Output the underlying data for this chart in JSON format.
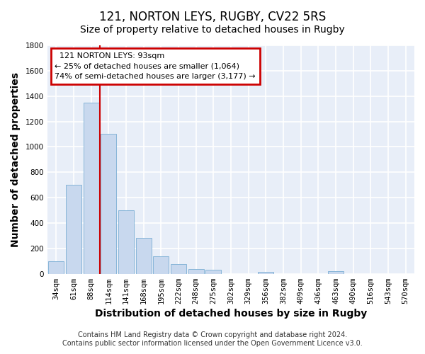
{
  "title": "121, NORTON LEYS, RUGBY, CV22 5RS",
  "subtitle": "Size of property relative to detached houses in Rugby",
  "xlabel": "Distribution of detached houses by size in Rugby",
  "ylabel": "Number of detached properties",
  "bar_labels": [
    "34sqm",
    "61sqm",
    "88sqm",
    "114sqm",
    "141sqm",
    "168sqm",
    "195sqm",
    "222sqm",
    "248sqm",
    "275sqm",
    "302sqm",
    "329sqm",
    "356sqm",
    "382sqm",
    "409sqm",
    "436sqm",
    "463sqm",
    "490sqm",
    "516sqm",
    "543sqm",
    "570sqm"
  ],
  "bar_values": [
    100,
    700,
    1350,
    1100,
    500,
    280,
    140,
    75,
    35,
    30,
    0,
    0,
    15,
    0,
    0,
    0,
    20,
    0,
    0,
    0,
    0
  ],
  "bar_color": "#c8d8ee",
  "bar_edgecolor": "#7aaed4",
  "ylim": [
    0,
    1800
  ],
  "yticks": [
    0,
    200,
    400,
    600,
    800,
    1000,
    1200,
    1400,
    1600,
    1800
  ],
  "vline_index": 2,
  "vline_color": "#cc0000",
  "annotation_title": "121 NORTON LEYS: 93sqm",
  "annotation_line1": "← 25% of detached houses are smaller (1,064)",
  "annotation_line2": "74% of semi-detached houses are larger (3,177) →",
  "annotation_box_color": "#cc0000",
  "footer1": "Contains HM Land Registry data © Crown copyright and database right 2024.",
  "footer2": "Contains public sector information licensed under the Open Government Licence v3.0.",
  "plot_bg_color": "#e8eef8",
  "fig_bg_color": "#ffffff",
  "grid_color": "#ffffff",
  "title_fontsize": 12,
  "subtitle_fontsize": 10,
  "axis_label_fontsize": 10,
  "tick_fontsize": 7.5,
  "annotation_fontsize": 8,
  "footer_fontsize": 7
}
